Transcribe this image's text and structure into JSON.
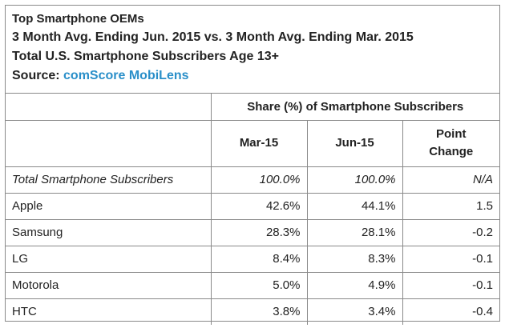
{
  "header": {
    "title": "Top Smartphone OEMs",
    "subtitle": "3 Month Avg. Ending Jun. 2015 vs. 3 Month Avg. Ending Mar. 2015",
    "population": "Total U.S. Smartphone Subscribers Age 13+",
    "source_label": "Source:",
    "source_value": "comScore MobiLens"
  },
  "table": {
    "group_header": "Share (%) of Smartphone Subscribers",
    "columns": [
      "Mar-15",
      "Jun-15",
      "Point Change"
    ],
    "column_lines": {
      "col3_line1": "Point",
      "col3_line2": "Change"
    },
    "rows": [
      {
        "label": "Total Smartphone Subscribers",
        "mar": "100.0%",
        "jun": "100.0%",
        "change": "N/A"
      },
      {
        "label": "Apple",
        "mar": "42.6%",
        "jun": "44.1%",
        "change": "1.5"
      },
      {
        "label": "Samsung",
        "mar": "28.3%",
        "jun": "28.1%",
        "change": "-0.2"
      },
      {
        "label": "LG",
        "mar": "8.4%",
        "jun": "8.3%",
        "change": "-0.1"
      },
      {
        "label": "Motorola",
        "mar": "5.0%",
        "jun": "4.9%",
        "change": "-0.1"
      },
      {
        "label": "HTC",
        "mar": "3.8%",
        "jun": "3.4%",
        "change": "-0.4"
      }
    ]
  },
  "colors": {
    "source_link": "#2a8fc9",
    "border": "#8a8a8a"
  }
}
